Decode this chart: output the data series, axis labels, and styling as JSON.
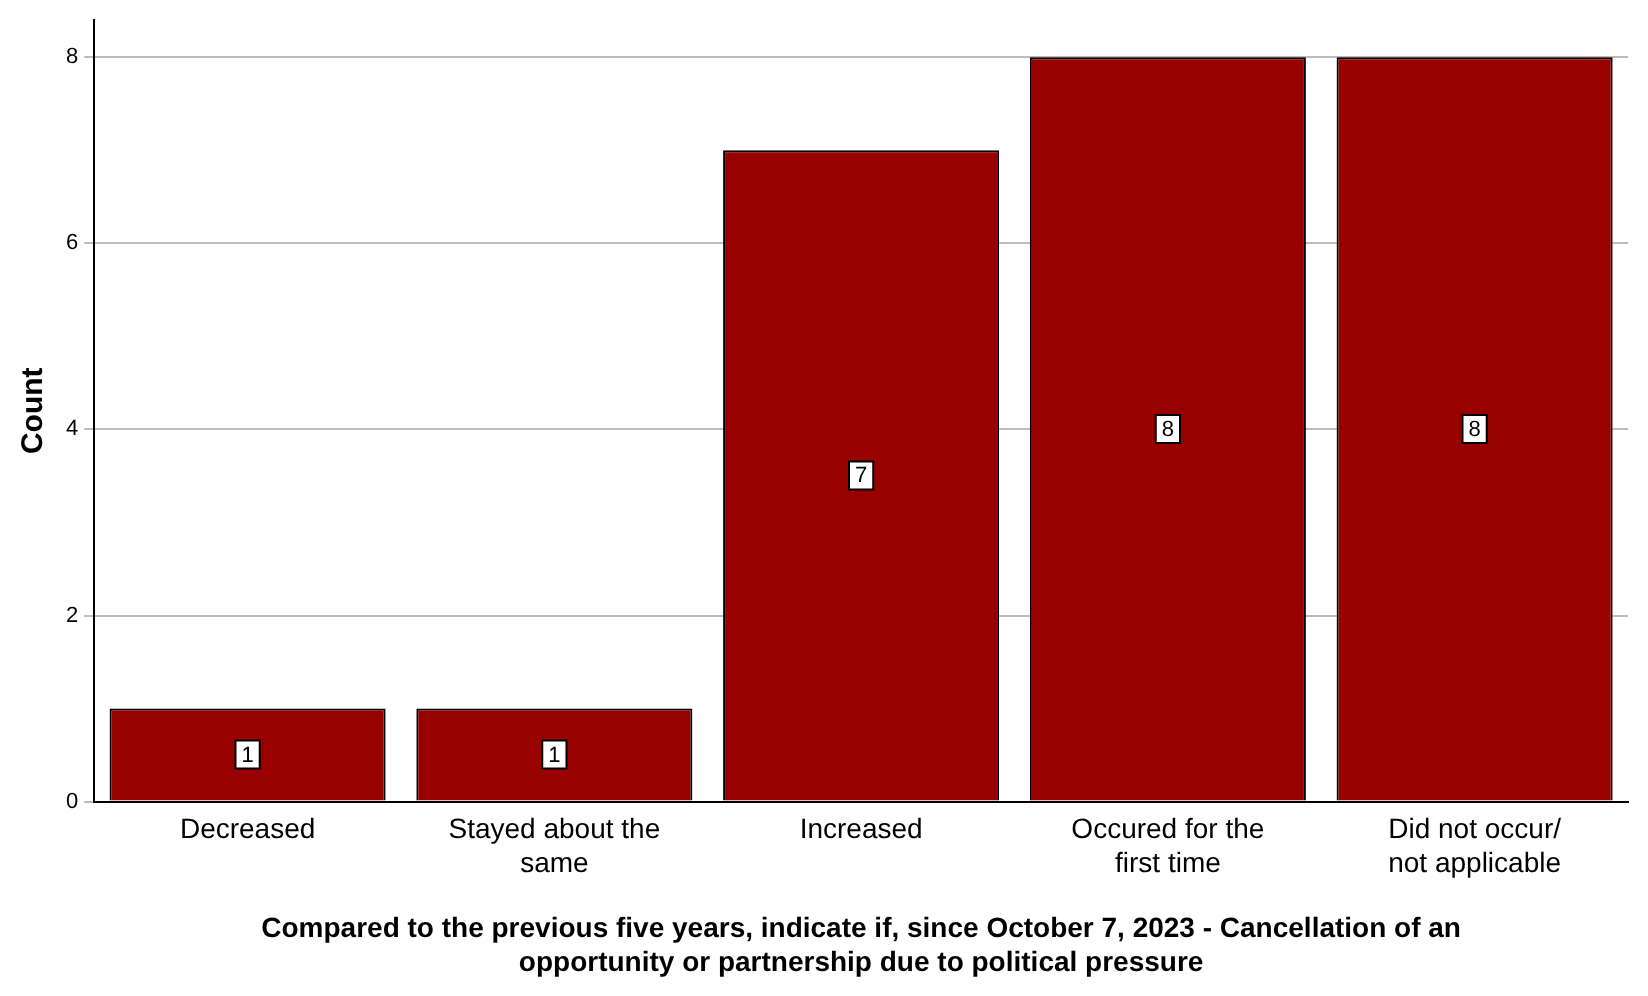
{
  "chart_data": {
    "type": "bar",
    "xlabel": "Compared to the previous five years, indicate if, since October 7, 2023 - Cancellation of an opportunity or partnership due to political pressure",
    "ylabel": "Count",
    "categories": [
      "Decreased",
      "Stayed about the same",
      "Increased",
      "Occured for the first time",
      "Did not occur/ not applicable"
    ],
    "values": [
      1,
      1,
      7,
      8,
      8
    ],
    "color": "#990000",
    "data_labels": true,
    "ylim": [
      0,
      8.4
    ],
    "yticks": [
      0,
      2,
      4,
      6,
      8
    ],
    "grid": "y",
    "legend": false
  }
}
